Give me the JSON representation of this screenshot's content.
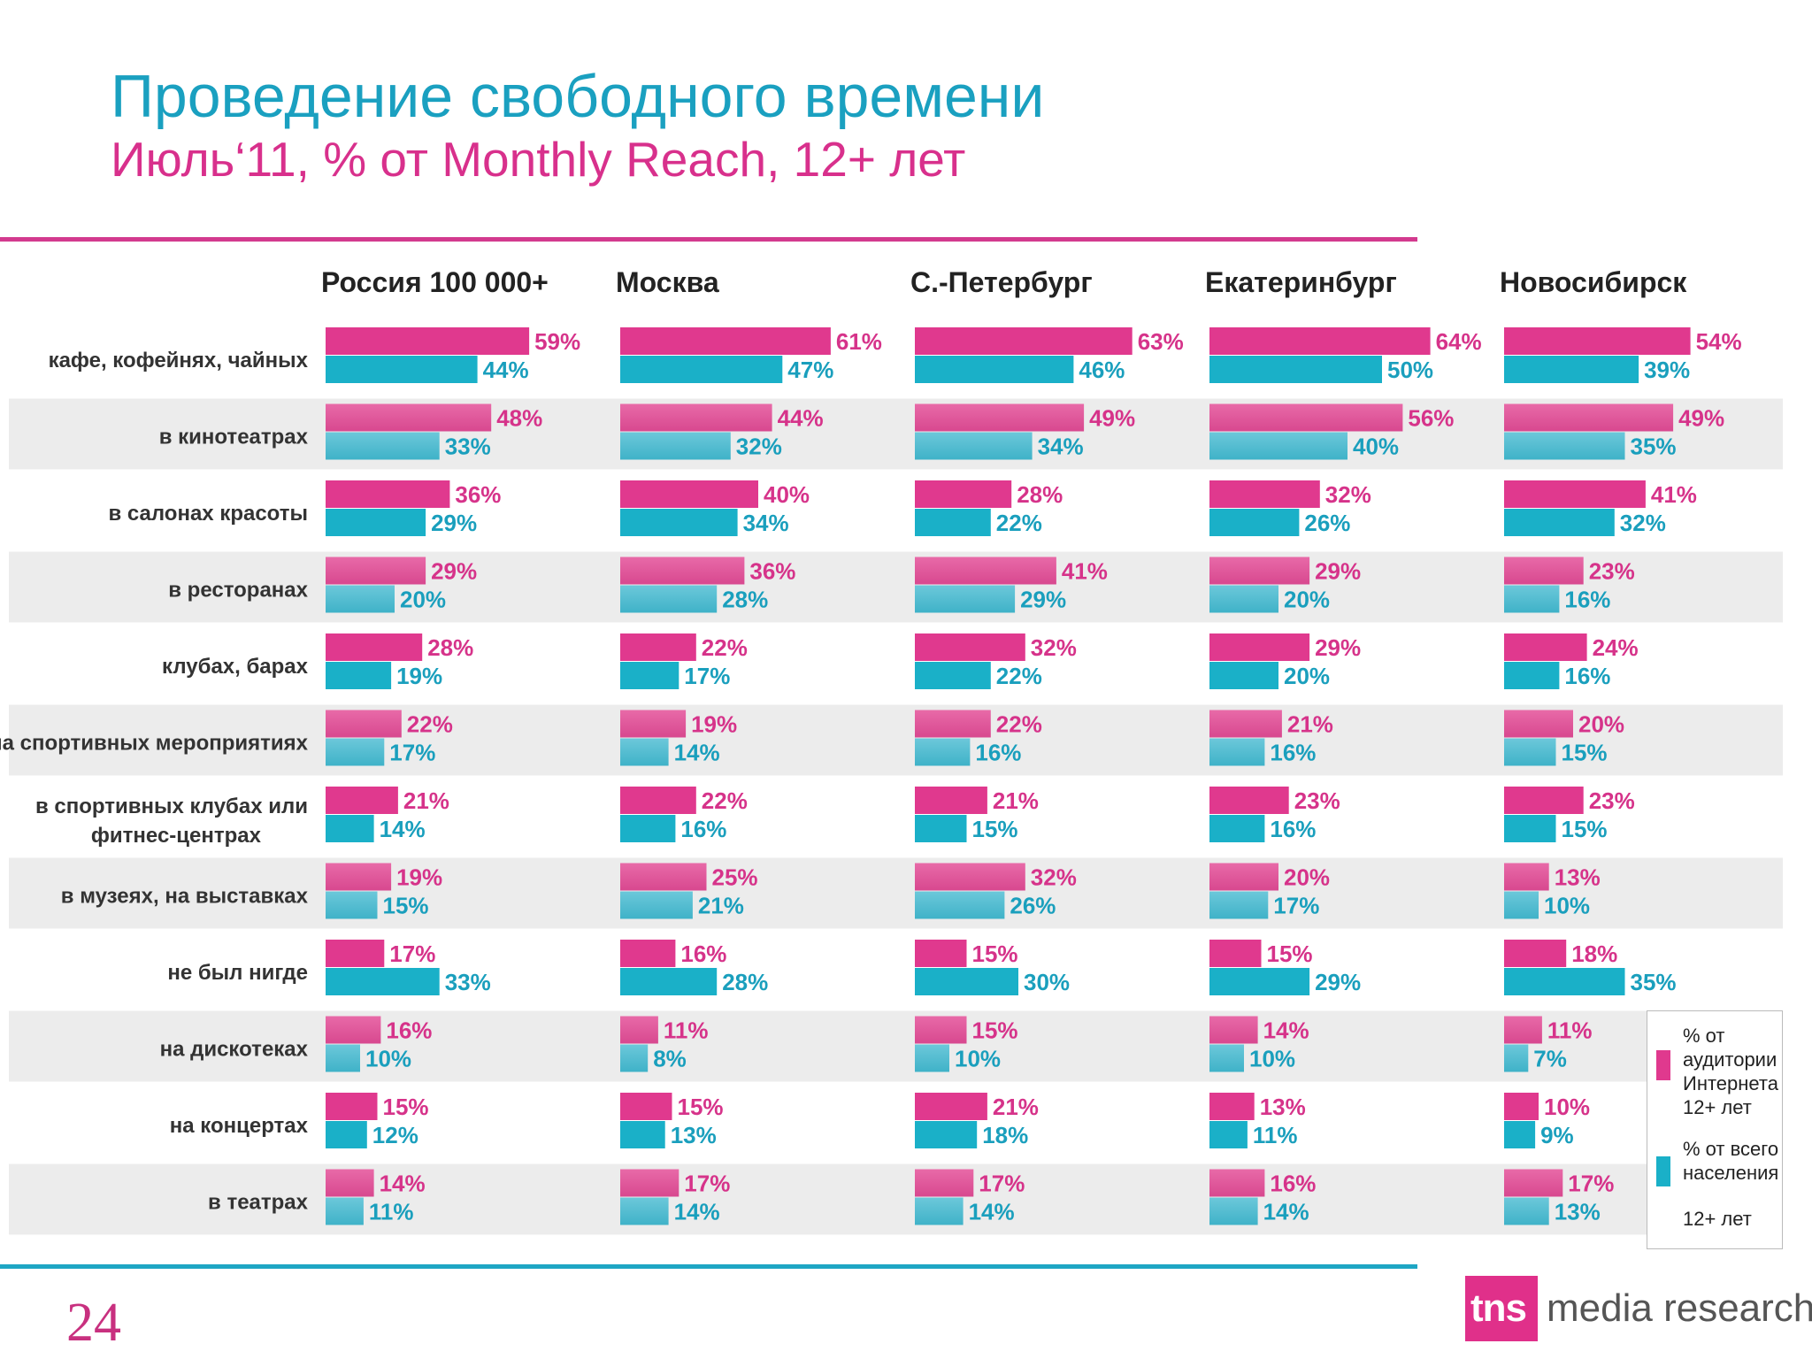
{
  "header": {
    "title": "Проведение свободного времени",
    "subtitle": "Июль‘11, % от Monthly Reach, 12+ лет"
  },
  "footer": {
    "page_number": "24",
    "logo_mark": "tns",
    "logo_text": "media research"
  },
  "legend": {
    "internet_label": "% от аудитории Интернета 12+ лет",
    "population_label": "% от всего населения",
    "population_suffix": "12+ лет"
  },
  "colors": {
    "internet": "#e0398e",
    "population": "#1ab0c8",
    "title": "#1aa0c0",
    "subtitle": "#d8308c"
  },
  "chart_data": {
    "type": "bar",
    "orientation": "horizontal",
    "panels": [
      "Россия 100 000+",
      "Москва",
      "С.-Петербург",
      "Екатеринбург",
      "Новосибирск"
    ],
    "categories": [
      "кафе, кофейнях, чайных",
      "в кинотеатрах",
      "в салонах красоты",
      "в ресторанах",
      "клубах, барах",
      "на спортивных мероприятиях",
      "в спортивных клубах или фитнес-центрах",
      "в музеях, на выставках",
      "не был нигде",
      "на дискотеках",
      "на концертах",
      "в театрах"
    ],
    "series": [
      {
        "name": "% от аудитории Интернета 12+ лет",
        "values": [
          [
            59,
            48,
            36,
            29,
            28,
            22,
            21,
            19,
            17,
            16,
            15,
            14
          ],
          [
            61,
            44,
            40,
            36,
            22,
            19,
            22,
            25,
            16,
            11,
            15,
            17
          ],
          [
            63,
            49,
            28,
            41,
            32,
            22,
            21,
            32,
            15,
            15,
            21,
            17
          ],
          [
            64,
            56,
            32,
            29,
            29,
            21,
            23,
            20,
            15,
            14,
            13,
            16
          ],
          [
            54,
            49,
            41,
            23,
            24,
            20,
            23,
            13,
            18,
            11,
            10,
            17
          ]
        ]
      },
      {
        "name": "% от всего населения 12+ лет",
        "values": [
          [
            44,
            33,
            29,
            20,
            19,
            17,
            14,
            15,
            33,
            10,
            12,
            11
          ],
          [
            47,
            32,
            34,
            28,
            17,
            14,
            16,
            21,
            28,
            8,
            13,
            14
          ],
          [
            46,
            34,
            22,
            29,
            22,
            16,
            15,
            26,
            30,
            10,
            18,
            14
          ],
          [
            50,
            40,
            26,
            20,
            20,
            16,
            16,
            17,
            29,
            10,
            11,
            14
          ],
          [
            39,
            35,
            32,
            16,
            16,
            15,
            15,
            10,
            35,
            7,
            9,
            13
          ]
        ]
      }
    ],
    "value_suffix": "%",
    "xlim": [
      0,
      70
    ],
    "shaded_rows": [
      1,
      3,
      5,
      7,
      9,
      11
    ]
  }
}
